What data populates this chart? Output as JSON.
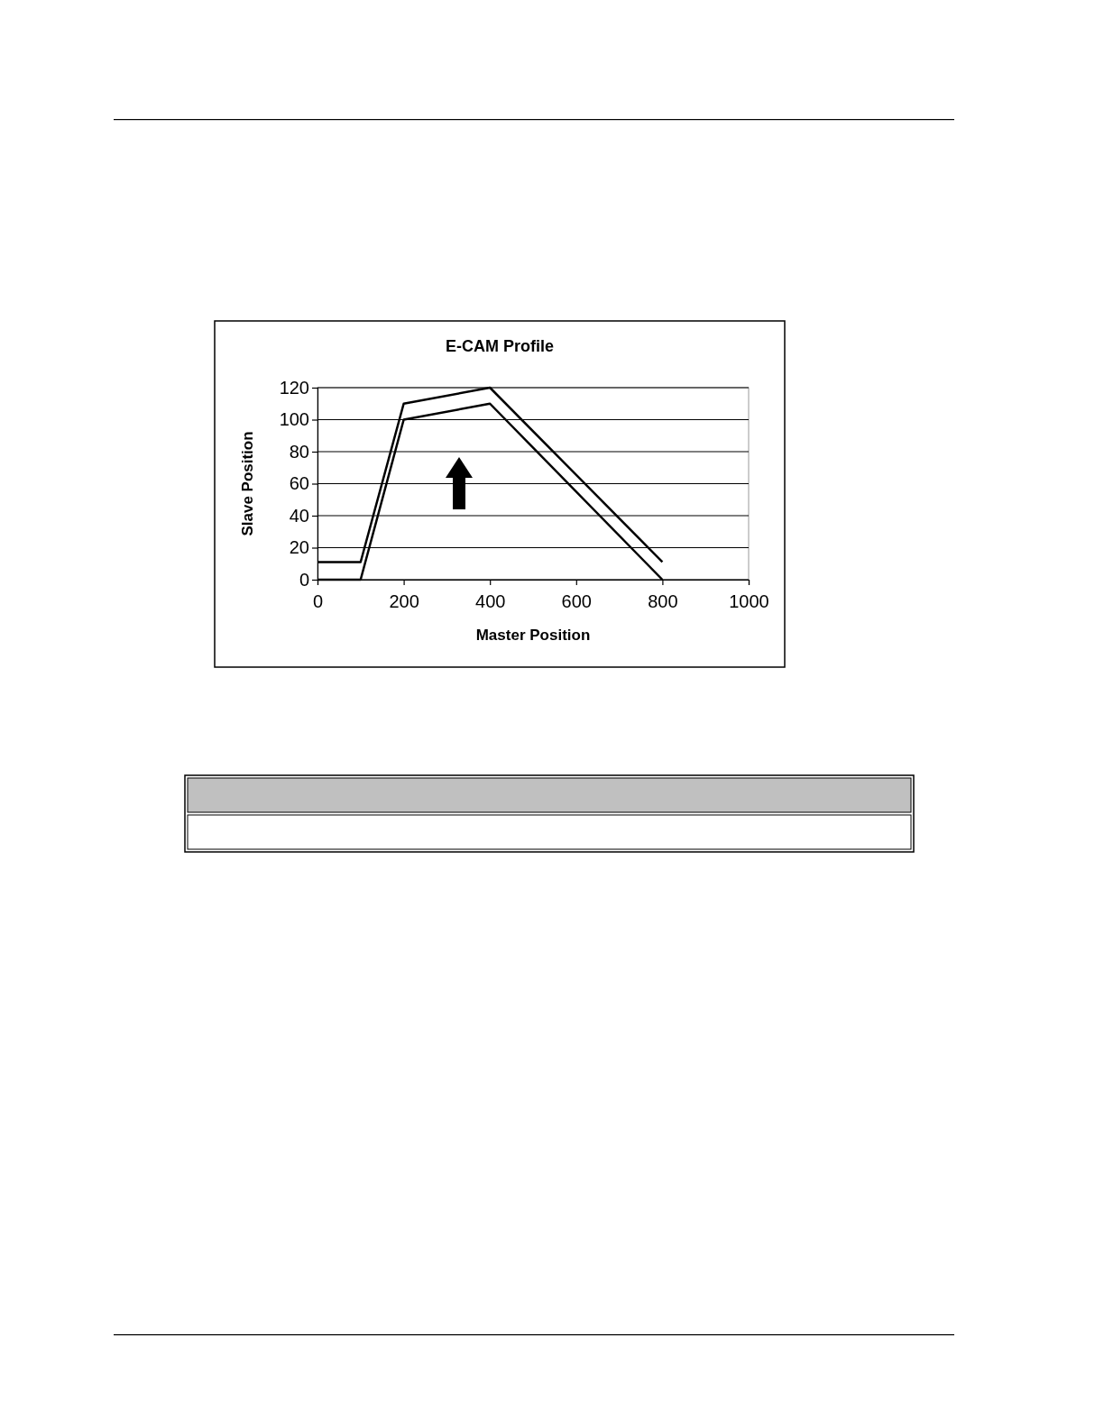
{
  "chart_data": {
    "type": "line",
    "title": "E-CAM Profile",
    "xlabel": "Master Position",
    "ylabel": "Slave Position",
    "xlim": [
      0,
      1000
    ],
    "xticks": [
      0,
      200,
      400,
      600,
      800,
      1000
    ],
    "ylim": [
      0,
      120
    ],
    "yticks": [
      0,
      20,
      40,
      60,
      80,
      100,
      120
    ],
    "grid": "y",
    "marker": "none",
    "line_style": "solid",
    "series": [
      {
        "color": "#000000",
        "x": [
          0,
          100,
          200,
          400,
          800
        ],
        "values": [
          0,
          0,
          100,
          110,
          0
        ]
      },
      {
        "color": "#000000",
        "x": [
          0,
          100,
          200,
          400,
          800
        ],
        "values": [
          11,
          11,
          110,
          120,
          11
        ]
      }
    ]
  }
}
